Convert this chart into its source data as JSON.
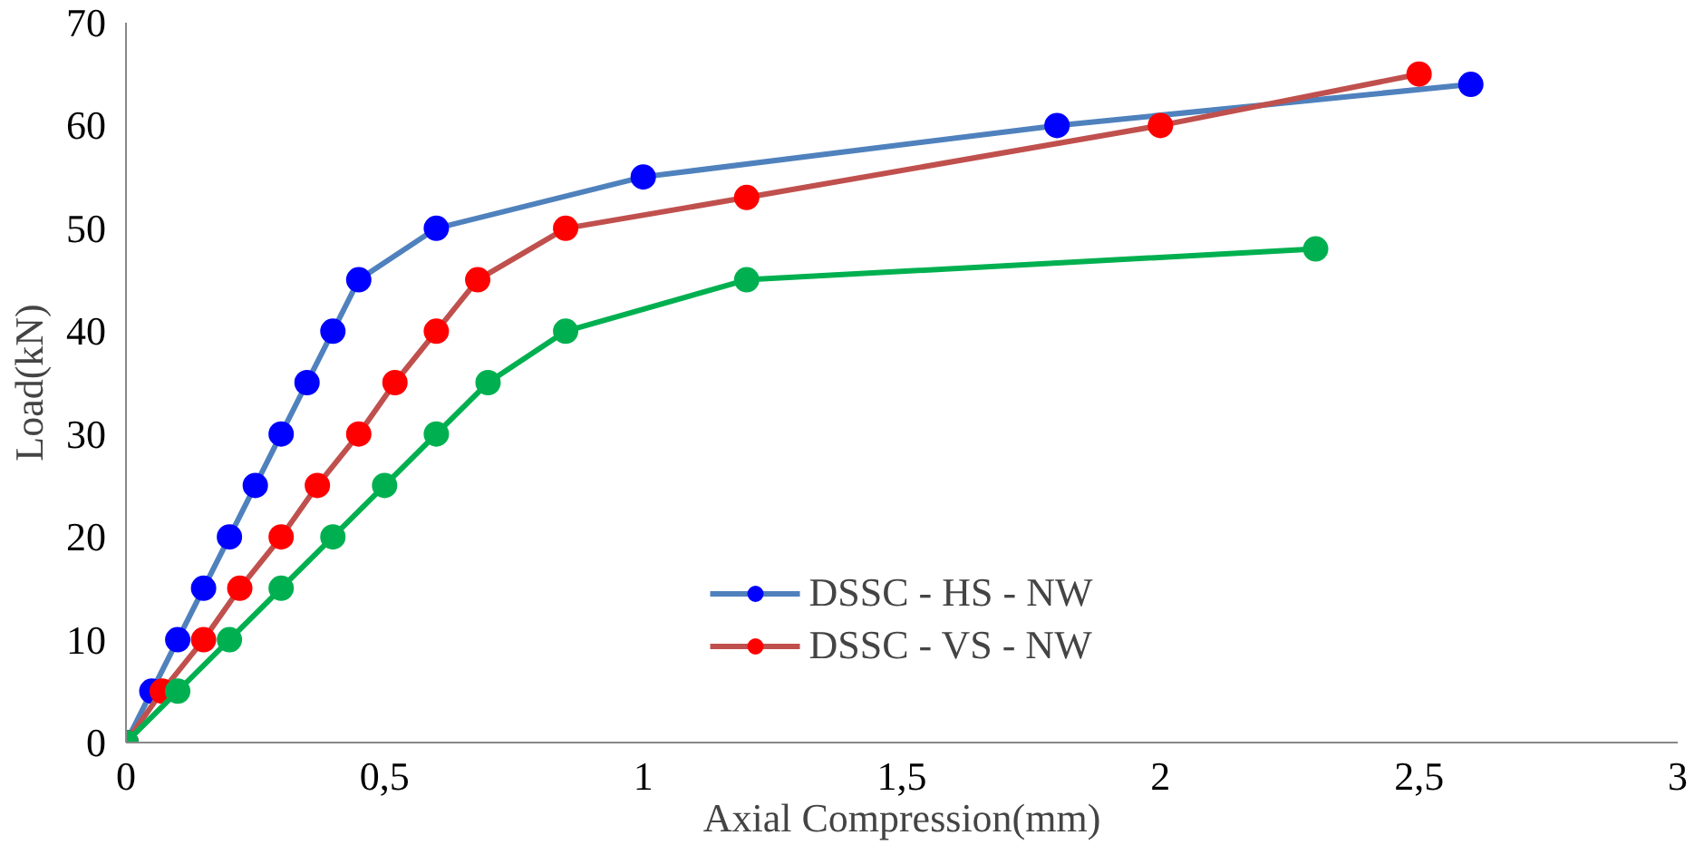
{
  "chart_data": {
    "type": "line",
    "xlabel": "Axial Compression(mm)",
    "ylabel": "Load(kN)",
    "xlim": [
      0,
      3
    ],
    "ylim": [
      0,
      70
    ],
    "xticks": [
      0,
      {
        "value": 0.5,
        "label": "0,5"
      },
      1,
      {
        "value": 1.5,
        "label": "1,5"
      },
      2,
      {
        "value": 2.5,
        "label": "2,5"
      },
      3
    ],
    "yticks": [
      0,
      10,
      20,
      30,
      40,
      50,
      60,
      70
    ],
    "grid": false,
    "legend": "bottom",
    "marker": "circle",
    "line_style": "solid",
    "series": [
      {
        "name": "DSSC - HS - NW",
        "color": "#4f81bd",
        "colors": [
          "#0000ff",
          "#0000ff",
          "#0000ff",
          "#0000ff",
          "#0000ff",
          "#0000ff",
          "#0000ff",
          "#0000ff",
          "#0000ff",
          "#0000ff",
          "#0000ff",
          "#0000ff",
          "#0000ff",
          "#0000ff"
        ],
        "x": [
          0,
          0.05,
          0.1,
          0.15,
          0.2,
          0.25,
          0.3,
          0.35,
          0.4,
          0.45,
          0.6,
          1,
          1.8,
          2.6
        ],
        "values": [
          0,
          5,
          10,
          15,
          20,
          25,
          30,
          35,
          40,
          45,
          50,
          55,
          60,
          64
        ]
      },
      {
        "name": "DSSC - VS - NW",
        "color": "#c0504d",
        "colors": [
          "#ff0000",
          "#ff0000",
          "#ff0000",
          "#ff0000",
          "#ff0000",
          "#ff0000",
          "#ff0000",
          "#ff0000",
          "#ff0000",
          "#ff0000",
          "#ff0000",
          "#ff0000",
          "#ff0000",
          "#ff0000"
        ],
        "x": [
          0,
          0.07,
          0.15,
          0.22,
          0.3,
          0.37,
          0.45,
          0.52,
          0.6,
          0.68,
          0.85,
          1.2,
          2,
          2.5
        ],
        "values": [
          0,
          5,
          10,
          15,
          20,
          25,
          30,
          35,
          40,
          45,
          50,
          53,
          60,
          65
        ]
      },
      {
        "color": "#00b050",
        "x": [
          0,
          0.1,
          0.2,
          0.3,
          0.4,
          0.5,
          0.6,
          0.7,
          0.85,
          1.2,
          2.3
        ],
        "values": [
          0,
          5,
          10,
          15,
          20,
          25,
          30,
          35,
          40,
          45,
          48
        ]
      }
    ]
  }
}
